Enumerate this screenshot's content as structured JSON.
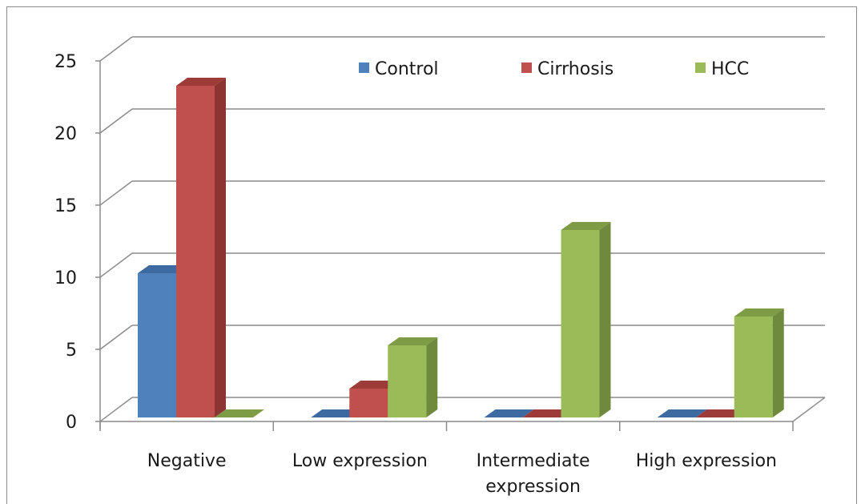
{
  "chart_data": {
    "type": "bar",
    "categories": [
      "Negative",
      "Low expression",
      "Intermediate expression",
      "High expression"
    ],
    "category_lines": [
      [
        "Negative"
      ],
      [
        "Low expression"
      ],
      [
        "Intermediate",
        "expression"
      ],
      [
        "High expression"
      ]
    ],
    "series": [
      {
        "name": "Control",
        "values": [
          10,
          0,
          0,
          0
        ],
        "color": "#4f81bd",
        "side_color": "#385d8a",
        "top_color": "#3d6aa1"
      },
      {
        "name": "Cirrhosis",
        "values": [
          23,
          2,
          0,
          0
        ],
        "color": "#c0504d",
        "side_color": "#8b3431",
        "top_color": "#9c3b38"
      },
      {
        "name": "HCC",
        "values": [
          0,
          5,
          13,
          7
        ],
        "color": "#9bbb59",
        "side_color": "#6f8a3d",
        "top_color": "#7e9c45"
      }
    ],
    "ylim": [
      0,
      25
    ],
    "yticks": [
      "0",
      "5",
      "10",
      "15",
      "20",
      "25"
    ],
    "grid": true,
    "legend_position": "top-right"
  }
}
